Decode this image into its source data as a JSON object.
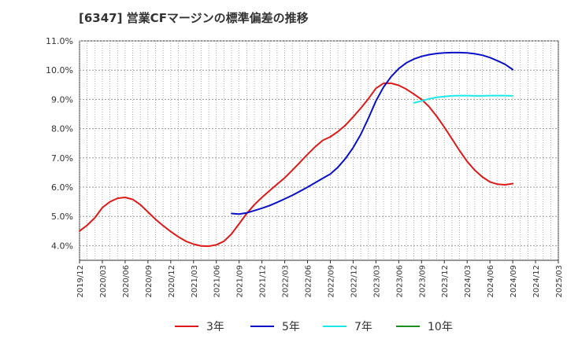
{
  "title": "[6347]  営業CFマージンの標準偏差の推移",
  "chart_data": {
    "type": "line",
    "title": "[6347]  営業CFマージンの標準偏差の推移",
    "xlabel": "",
    "ylabel": "",
    "ylim": [
      3.5,
      11.0
    ],
    "y_ticks": [
      "4.0%",
      "5.0%",
      "6.0%",
      "7.0%",
      "8.0%",
      "9.0%",
      "10.0%",
      "11.0%"
    ],
    "x_ticks": [
      "2019/12",
      "2020/03",
      "2020/06",
      "2020/09",
      "2020/12",
      "2021/03",
      "2021/06",
      "2021/09",
      "2021/12",
      "2022/03",
      "2022/06",
      "2022/09",
      "2022/12",
      "2023/03",
      "2023/06",
      "2023/09",
      "2023/12",
      "2024/03",
      "2024/06",
      "2024/09",
      "2024/12",
      "2025/03"
    ],
    "grid": true,
    "legend_position": "bottom",
    "series": [
      {
        "name": "3年",
        "color": "#dd1a1a",
        "points": [
          [
            "2019/12",
            4.5
          ],
          [
            "2020/01",
            4.7
          ],
          [
            "2020/02",
            4.95
          ],
          [
            "2020/03",
            5.3
          ],
          [
            "2020/04",
            5.5
          ],
          [
            "2020/05",
            5.62
          ],
          [
            "2020/06",
            5.65
          ],
          [
            "2020/07",
            5.58
          ],
          [
            "2020/08",
            5.4
          ],
          [
            "2020/09",
            5.15
          ],
          [
            "2020/10",
            4.9
          ],
          [
            "2020/11",
            4.68
          ],
          [
            "2020/12",
            4.48
          ],
          [
            "2021/01",
            4.3
          ],
          [
            "2021/02",
            4.15
          ],
          [
            "2021/03",
            4.05
          ],
          [
            "2021/04",
            3.99
          ],
          [
            "2021/05",
            3.98
          ],
          [
            "2021/06",
            4.03
          ],
          [
            "2021/07",
            4.15
          ],
          [
            "2021/08",
            4.4
          ],
          [
            "2021/09",
            4.75
          ],
          [
            "2021/10",
            5.1
          ],
          [
            "2021/11",
            5.4
          ],
          [
            "2021/12",
            5.65
          ],
          [
            "2022/01",
            5.88
          ],
          [
            "2022/02",
            6.1
          ],
          [
            "2022/03",
            6.32
          ],
          [
            "2022/04",
            6.58
          ],
          [
            "2022/05",
            6.85
          ],
          [
            "2022/06",
            7.12
          ],
          [
            "2022/07",
            7.38
          ],
          [
            "2022/08",
            7.6
          ],
          [
            "2022/09",
            7.72
          ],
          [
            "2022/10",
            7.9
          ],
          [
            "2022/11",
            8.12
          ],
          [
            "2022/12",
            8.4
          ],
          [
            "2023/01",
            8.7
          ],
          [
            "2023/02",
            9.02
          ],
          [
            "2023/03",
            9.38
          ],
          [
            "2023/04",
            9.55
          ],
          [
            "2023/05",
            9.55
          ],
          [
            "2023/06",
            9.48
          ],
          [
            "2023/07",
            9.35
          ],
          [
            "2023/08",
            9.18
          ],
          [
            "2023/09",
            9.0
          ],
          [
            "2023/10",
            8.75
          ],
          [
            "2023/11",
            8.42
          ],
          [
            "2023/12",
            8.05
          ],
          [
            "2024/01",
            7.65
          ],
          [
            "2024/02",
            7.25
          ],
          [
            "2024/03",
            6.88
          ],
          [
            "2024/04",
            6.58
          ],
          [
            "2024/05",
            6.35
          ],
          [
            "2024/06",
            6.18
          ],
          [
            "2024/07",
            6.1
          ],
          [
            "2024/08",
            6.08
          ],
          [
            "2024/09",
            6.12
          ]
        ]
      },
      {
        "name": "5年",
        "color": "#0a10c8",
        "points": [
          [
            "2021/08",
            5.1
          ],
          [
            "2021/09",
            5.08
          ],
          [
            "2021/10",
            5.12
          ],
          [
            "2021/11",
            5.2
          ],
          [
            "2021/12",
            5.28
          ],
          [
            "2022/01",
            5.37
          ],
          [
            "2022/02",
            5.48
          ],
          [
            "2022/03",
            5.6
          ],
          [
            "2022/04",
            5.72
          ],
          [
            "2022/05",
            5.86
          ],
          [
            "2022/06",
            6.0
          ],
          [
            "2022/07",
            6.15
          ],
          [
            "2022/08",
            6.3
          ],
          [
            "2022/09",
            6.45
          ],
          [
            "2022/10",
            6.68
          ],
          [
            "2022/11",
            6.98
          ],
          [
            "2022/12",
            7.35
          ],
          [
            "2023/01",
            7.8
          ],
          [
            "2023/02",
            8.35
          ],
          [
            "2023/03",
            8.95
          ],
          [
            "2023/04",
            9.42
          ],
          [
            "2023/05",
            9.78
          ],
          [
            "2023/06",
            10.05
          ],
          [
            "2023/07",
            10.25
          ],
          [
            "2023/08",
            10.38
          ],
          [
            "2023/09",
            10.47
          ],
          [
            "2023/10",
            10.53
          ],
          [
            "2023/11",
            10.57
          ],
          [
            "2023/12",
            10.59
          ],
          [
            "2024/01",
            10.6
          ],
          [
            "2024/02",
            10.6
          ],
          [
            "2024/03",
            10.59
          ],
          [
            "2024/04",
            10.56
          ],
          [
            "2024/05",
            10.51
          ],
          [
            "2024/06",
            10.43
          ],
          [
            "2024/07",
            10.32
          ],
          [
            "2024/08",
            10.2
          ],
          [
            "2024/09",
            10.02
          ]
        ]
      },
      {
        "name": "7年",
        "color": "#1de8e8",
        "points": [
          [
            "2023/08",
            8.88
          ],
          [
            "2023/09",
            8.95
          ],
          [
            "2023/10",
            9.02
          ],
          [
            "2023/11",
            9.07
          ],
          [
            "2023/12",
            9.1
          ],
          [
            "2024/01",
            9.12
          ],
          [
            "2024/02",
            9.13
          ],
          [
            "2024/03",
            9.13
          ],
          [
            "2024/04",
            9.12
          ],
          [
            "2024/05",
            9.12
          ],
          [
            "2024/06",
            9.13
          ],
          [
            "2024/07",
            9.13
          ],
          [
            "2024/08",
            9.13
          ],
          [
            "2024/09",
            9.12
          ]
        ]
      },
      {
        "name": "10年",
        "color": "#1f8c1f",
        "points": []
      }
    ]
  }
}
